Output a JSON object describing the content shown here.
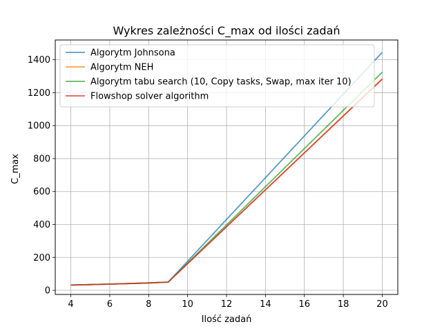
{
  "chart_data": {
    "type": "line",
    "title": "Wykres zależności C_max od ilości zadań",
    "xlabel": "Ilość zadań",
    "ylabel": "C_max",
    "x": [
      4,
      9,
      20
    ],
    "xlim": [
      3.2,
      20.8
    ],
    "ylim": [
      -25,
      1520
    ],
    "xticks": [
      4,
      6,
      8,
      10,
      12,
      14,
      16,
      18,
      20
    ],
    "yticks": [
      0,
      200,
      400,
      600,
      800,
      1000,
      1200,
      1400
    ],
    "grid": true,
    "legend_position": "top-left",
    "series": [
      {
        "name": "Algorytm Johnsona",
        "color": "#1f77b4",
        "x": [
          4,
          6,
          8,
          9,
          20
        ],
        "values": [
          32,
          38,
          45,
          50,
          1445
        ]
      },
      {
        "name": "Algorytm NEH",
        "color": "#ff7f0e",
        "x": [
          4,
          6,
          8,
          9,
          20
        ],
        "values": [
          32,
          38,
          45,
          50,
          1285
        ]
      },
      {
        "name": "Algorytm tabu search (10, Copy tasks, Swap, max iter 10)",
        "color": "#2ca02c",
        "x": [
          4,
          6,
          8,
          9,
          20
        ],
        "values": [
          32,
          38,
          45,
          50,
          1325
        ]
      },
      {
        "name": "Flowshop solver algorithm",
        "color": "#d62728",
        "x": [
          4,
          6,
          8,
          9,
          20
        ],
        "values": [
          32,
          38,
          45,
          50,
          1282
        ]
      }
    ]
  }
}
